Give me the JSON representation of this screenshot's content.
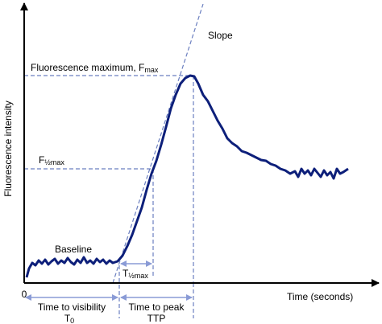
{
  "slope": "Slope",
  "fmax": {
    "text": "Fluorescence maximum, F",
    "sub": "max"
  },
  "fhalf": {
    "text": "F",
    "sub": "½max"
  },
  "baseline": "Baseline",
  "thalf": {
    "text": "T",
    "sub": "½max"
  },
  "y_axis": "Fluorescence intensity",
  "x_axis": "Time (seconds)",
  "origin": "0",
  "visibility": {
    "text": "Time to visibility",
    "symbol": "T",
    "sub": "0"
  },
  "peak": {
    "text": "Time to peak",
    "symbol": "TTP"
  }
}
